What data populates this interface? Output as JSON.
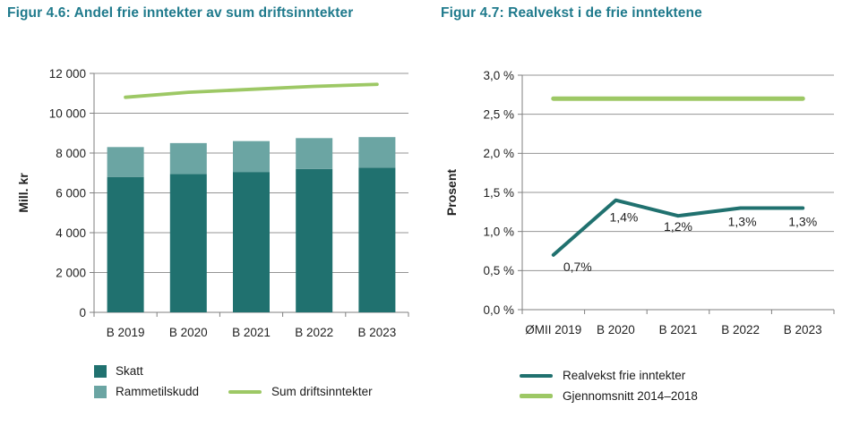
{
  "page": {
    "background": "#ffffff"
  },
  "colors": {
    "title": "#1f7a8c",
    "dark_teal": "#20716f",
    "light_teal": "#6ba5a3",
    "green": "#9dc865",
    "gridline": "#949494",
    "axis": "#7f7f7f",
    "text": "#1f1f1f"
  },
  "figures": [
    {
      "title": "Figur 4.6: Andel frie inntekter av sum driftsinntekter",
      "legend": [
        {
          "label": "Skatt",
          "swatch": "square",
          "color": "#20716f"
        },
        {
          "label": "Rammetilskudd",
          "swatch": "square",
          "color": "#6ba5a3"
        },
        {
          "label": "Sum driftsinntekter",
          "swatch": "line",
          "color": "#9dc865"
        }
      ]
    },
    {
      "title": "Figur 4.7: Realvekst i de frie inntektene",
      "legend": [
        {
          "label": "Realvekst frie inntekter",
          "swatch": "line",
          "color": "#20716f"
        },
        {
          "label": "Gjennomsnitt 2014–2018",
          "swatch": "line",
          "color": "#9dc865"
        }
      ]
    }
  ],
  "chart_data": [
    {
      "type": "bar",
      "subtype": "stacked-bars-with-line",
      "title": "Figur 4.6: Andel frie inntekter av sum driftsinntekter",
      "categories": [
        "B 2019",
        "B 2020",
        "B 2021",
        "B 2022",
        "B 2023"
      ],
      "series": [
        {
          "name": "Skatt",
          "kind": "bar",
          "color": "#20716f",
          "values": [
            6800,
            6950,
            7050,
            7200,
            7270
          ]
        },
        {
          "name": "Rammetilskudd",
          "kind": "bar",
          "color": "#6ba5a3",
          "values": [
            1500,
            1550,
            1550,
            1550,
            1530
          ]
        },
        {
          "name": "Sum driftsinntekter",
          "kind": "line",
          "color": "#9dc865",
          "values": [
            10800,
            11050,
            11200,
            11350,
            11450
          ]
        }
      ],
      "xlabel": "",
      "ylabel": "Mill. kr",
      "ylim": [
        0,
        12000
      ],
      "ytick_step": 2000,
      "ytick_labels": [
        "0",
        "2 000",
        "4 000",
        "6 000",
        "8 000",
        "10 000",
        "12 000"
      ],
      "grid": true,
      "legend_position": "bottom"
    },
    {
      "type": "line",
      "title": "Figur 4.7: Realvekst i de frie inntektene",
      "categories": [
        "ØMII 2019",
        "B 2020",
        "B 2021",
        "B 2022",
        "B 2023"
      ],
      "series": [
        {
          "name": "Realvekst frie inntekter",
          "kind": "line",
          "color": "#20716f",
          "values": [
            0.7,
            1.4,
            1.2,
            1.3,
            1.3
          ],
          "point_labels": [
            "0,7%",
            "1,4%",
            "1,2%",
            "1,3%",
            "1,3%"
          ]
        },
        {
          "name": "Gjennomsnitt 2014–2018",
          "kind": "line",
          "color": "#9dc865",
          "values": [
            2.7,
            2.7,
            2.7,
            2.7,
            2.7
          ]
        }
      ],
      "xlabel": "",
      "ylabel": "Prosent",
      "ylim": [
        0,
        3
      ],
      "ytick_step": 0.5,
      "ytick_labels": [
        "0,0 %",
        "0,5 %",
        "1,0 %",
        "1,5 %",
        "2,0 %",
        "2,5 %",
        "3,0 %"
      ],
      "grid": true,
      "legend_position": "bottom"
    }
  ]
}
